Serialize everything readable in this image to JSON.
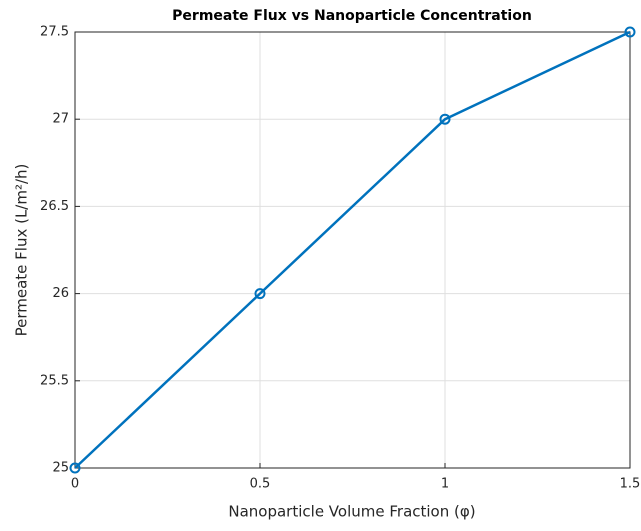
{
  "chart_data": {
    "type": "line",
    "title": "Permeate Flux vs Nanoparticle Concentration",
    "x_label": "Nanoparticle Volume Fraction (φ)",
    "y_label": "Permeate Flux (L/m²/h)",
    "x": [
      0,
      0.5,
      1,
      1.5
    ],
    "series": [
      {
        "name": "Permeate Flux",
        "color": "#0072bd",
        "values": [
          25,
          26,
          27,
          27.5
        ]
      }
    ],
    "xlim": [
      0,
      1.5
    ],
    "xticks": [
      0,
      0.5,
      1,
      1.5
    ],
    "ylim": [
      25,
      27.5
    ],
    "yticks": [
      25,
      25.5,
      26,
      26.5,
      27,
      27.5
    ],
    "grid": true,
    "markers": true
  }
}
